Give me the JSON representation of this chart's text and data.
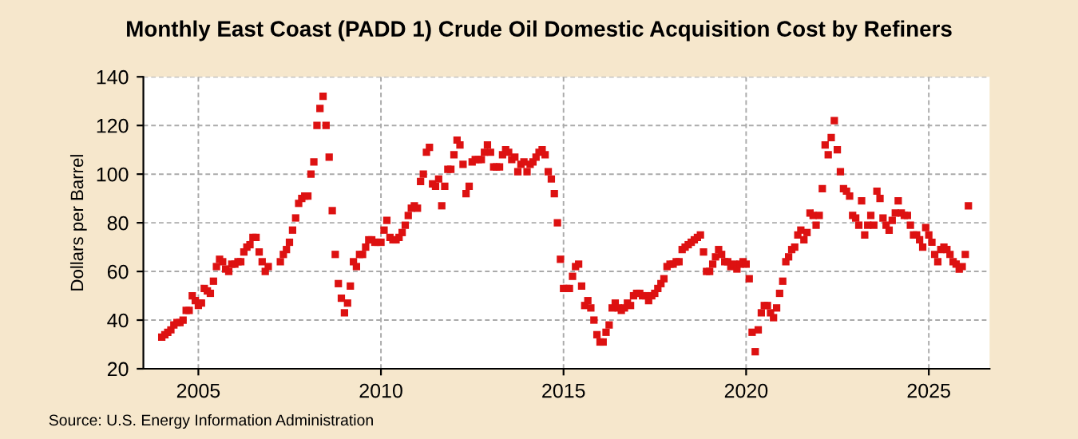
{
  "chart_data": {
    "type": "scatter",
    "title": "Monthly East Coast (PADD 1) Crude Oil Domestic Acquisition Cost by Refiners",
    "ylabel": "Dollars per Barrel",
    "annotations": [
      "Source: U.S. Energy Information Administration"
    ],
    "x": [
      "2004-01",
      "2004-02",
      "2004-03",
      "2004-04",
      "2004-05",
      "2004-06",
      "2004-07",
      "2004-08",
      "2004-09",
      "2004-10",
      "2004-11",
      "2004-12",
      "2005-01",
      "2005-02",
      "2005-03",
      "2005-04",
      "2005-05",
      "2005-06",
      "2005-07",
      "2005-08",
      "2005-09",
      "2005-10",
      "2005-11",
      "2005-12",
      "2006-01",
      "2006-02",
      "2006-03",
      "2006-04",
      "2006-05",
      "2006-06",
      "2006-07",
      "2006-08",
      "2006-09",
      "2006-10",
      "2006-11",
      "2006-12",
      "2007-04",
      "2007-05",
      "2007-06",
      "2007-07",
      "2007-08",
      "2007-09",
      "2007-10",
      "2007-11",
      "2007-12",
      "2008-01",
      "2008-02",
      "2008-03",
      "2008-04",
      "2008-05",
      "2008-06",
      "2008-07",
      "2008-08",
      "2008-09",
      "2008-10",
      "2008-11",
      "2008-12",
      "2009-01",
      "2009-02",
      "2009-03",
      "2009-04",
      "2009-05",
      "2009-06",
      "2009-07",
      "2009-08",
      "2009-09",
      "2009-10",
      "2009-11",
      "2009-12",
      "2010-01",
      "2010-02",
      "2010-03",
      "2010-04",
      "2010-05",
      "2010-06",
      "2010-07",
      "2010-08",
      "2010-09",
      "2010-10",
      "2010-11",
      "2010-12",
      "2011-01",
      "2011-02",
      "2011-03",
      "2011-04",
      "2011-05",
      "2011-06",
      "2011-07",
      "2011-08",
      "2011-09",
      "2011-10",
      "2011-11",
      "2011-12",
      "2012-01",
      "2012-02",
      "2012-03",
      "2012-04",
      "2012-05",
      "2012-06",
      "2012-07",
      "2012-08",
      "2012-09",
      "2012-10",
      "2012-11",
      "2012-12",
      "2013-01",
      "2013-02",
      "2013-03",
      "2013-04",
      "2013-05",
      "2013-06",
      "2013-07",
      "2013-08",
      "2013-09",
      "2013-10",
      "2013-11",
      "2013-12",
      "2014-01",
      "2014-02",
      "2014-03",
      "2014-04",
      "2014-05",
      "2014-06",
      "2014-07",
      "2014-08",
      "2014-09",
      "2014-10",
      "2014-11",
      "2014-12",
      "2015-01",
      "2015-02",
      "2015-03",
      "2015-04",
      "2015-05",
      "2015-06",
      "2015-07",
      "2015-08",
      "2015-09",
      "2015-10",
      "2015-11",
      "2015-12",
      "2016-01",
      "2016-02",
      "2016-03",
      "2016-04",
      "2016-05",
      "2016-06",
      "2016-07",
      "2016-08",
      "2016-09",
      "2016-10",
      "2016-11",
      "2016-12",
      "2017-01",
      "2017-02",
      "2017-03",
      "2017-04",
      "2017-05",
      "2017-06",
      "2017-07",
      "2017-08",
      "2017-09",
      "2017-10",
      "2017-11",
      "2017-12",
      "2018-01",
      "2018-02",
      "2018-03",
      "2018-04",
      "2018-05",
      "2018-06",
      "2018-07",
      "2018-08",
      "2018-09",
      "2018-10",
      "2018-11",
      "2018-12",
      "2019-01",
      "2019-02",
      "2019-03",
      "2019-04",
      "2019-05",
      "2019-06",
      "2019-07",
      "2019-08",
      "2019-09",
      "2019-10",
      "2019-11",
      "2019-12",
      "2020-01",
      "2020-02",
      "2020-03",
      "2020-04",
      "2020-05",
      "2020-06",
      "2020-07",
      "2020-08",
      "2020-09",
      "2020-10",
      "2020-11",
      "2020-12",
      "2021-01",
      "2021-02",
      "2021-03",
      "2021-04",
      "2021-05",
      "2021-06",
      "2021-07",
      "2021-08",
      "2021-09",
      "2021-10",
      "2021-11",
      "2021-12",
      "2022-01",
      "2022-02",
      "2022-03",
      "2022-04",
      "2022-05",
      "2022-06",
      "2022-07",
      "2022-08",
      "2022-09",
      "2022-10",
      "2022-11",
      "2022-12",
      "2023-01",
      "2023-02",
      "2023-03",
      "2023-04",
      "2023-05",
      "2023-06",
      "2023-07",
      "2023-08",
      "2023-09",
      "2023-10",
      "2023-11",
      "2023-12",
      "2024-01",
      "2024-02",
      "2024-03",
      "2024-04",
      "2024-05",
      "2024-06",
      "2024-07",
      "2024-08",
      "2024-09",
      "2024-10",
      "2024-11",
      "2024-12",
      "2025-01",
      "2025-02",
      "2025-03",
      "2025-04",
      "2025-05",
      "2025-06",
      "2025-07",
      "2025-08",
      "2025-09",
      "2025-10",
      "2025-11",
      "2025-12",
      "2026-01",
      "2026-02"
    ],
    "series": [
      {
        "color": "#dd1111",
        "values": [
          33,
          34,
          35,
          36,
          38,
          39,
          39,
          40,
          44,
          44,
          50,
          48,
          46,
          47,
          53,
          52,
          51,
          56,
          62,
          65,
          64,
          61,
          60,
          63,
          63,
          64,
          64,
          68,
          70,
          71,
          74,
          74,
          68,
          64,
          60,
          62,
          64,
          67,
          69,
          72,
          77,
          82,
          88,
          90,
          91,
          91,
          100,
          105,
          120,
          127,
          132,
          120,
          107,
          85,
          67,
          55,
          49,
          43,
          47,
          54,
          64,
          62,
          67,
          67,
          70,
          73,
          73,
          72,
          72,
          72,
          77,
          81,
          74,
          73,
          73,
          74,
          76,
          79,
          83,
          86,
          87,
          86,
          97,
          100,
          109,
          111,
          96,
          95,
          98,
          87,
          95,
          102,
          102,
          108,
          114,
          112,
          104,
          92,
          95,
          105,
          106,
          106,
          106,
          109,
          112,
          109,
          103,
          103,
          103,
          108,
          110,
          109,
          106,
          107,
          101,
          104,
          105,
          101,
          104,
          105,
          107,
          109,
          110,
          108,
          101,
          98,
          92,
          80,
          65,
          53,
          53,
          53,
          58,
          62,
          63,
          54,
          46,
          48,
          45,
          40,
          34,
          31,
          31,
          35,
          38,
          45,
          47,
          45,
          44,
          45,
          47,
          46,
          50,
          51,
          51,
          50,
          50,
          48,
          50,
          51,
          53,
          55,
          57,
          62,
          63,
          63,
          64,
          64,
          69,
          70,
          71,
          72,
          73,
          74,
          75,
          68,
          60,
          60,
          63,
          66,
          69,
          67,
          64,
          64,
          62,
          63,
          61,
          63,
          64,
          63,
          57,
          35,
          27,
          36,
          43,
          46,
          46,
          43,
          41,
          45,
          51,
          56,
          64,
          66,
          69,
          70,
          75,
          77,
          73,
          76,
          84,
          83,
          79,
          83,
          94,
          112,
          108,
          115,
          122,
          110,
          101,
          94,
          93,
          91,
          83,
          82,
          79,
          89,
          75,
          79,
          83,
          79,
          93,
          90,
          82,
          79,
          77,
          81,
          84,
          89,
          84,
          83,
          83,
          79,
          75,
          75,
          73,
          70,
          78,
          75,
          72,
          67,
          64,
          69,
          70,
          69,
          67,
          64,
          63,
          61,
          62,
          67,
          87
        ]
      }
    ],
    "marker": "square",
    "grid": true,
    "xlim": [
      "2003-07",
      "2026-09"
    ],
    "xticks": [
      {
        "value": "2005",
        "label": "2005"
      },
      {
        "value": "2010",
        "label": "2010"
      },
      {
        "value": "2015",
        "label": "2015"
      },
      {
        "value": "2020",
        "label": "2020"
      },
      {
        "value": "2025",
        "label": "2025"
      }
    ],
    "ylim": [
      20,
      140
    ],
    "yticks": [
      20,
      40,
      60,
      80,
      100,
      120,
      140
    ]
  }
}
